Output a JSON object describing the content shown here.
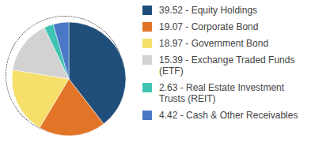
{
  "chart_data": {
    "type": "pie",
    "categories": [
      "39.52 - Equity Holdings",
      "19.07 - Corporate Bond",
      "18.97 - Government Bond",
      "15.39 - Exchange Traded Funds (ETF)",
      "2.63 - Real Estate Investment Trusts (REIT)",
      "4.42 - Cash & Other Receivables"
    ],
    "values": [
      39.52,
      19.07,
      18.97,
      15.39,
      2.63,
      4.42
    ],
    "colors": [
      "#1f4e7a",
      "#e27428",
      "#f6df6b",
      "#d2d2d2",
      "#3fc3b3",
      "#4a78c6"
    ],
    "legend": "right"
  }
}
